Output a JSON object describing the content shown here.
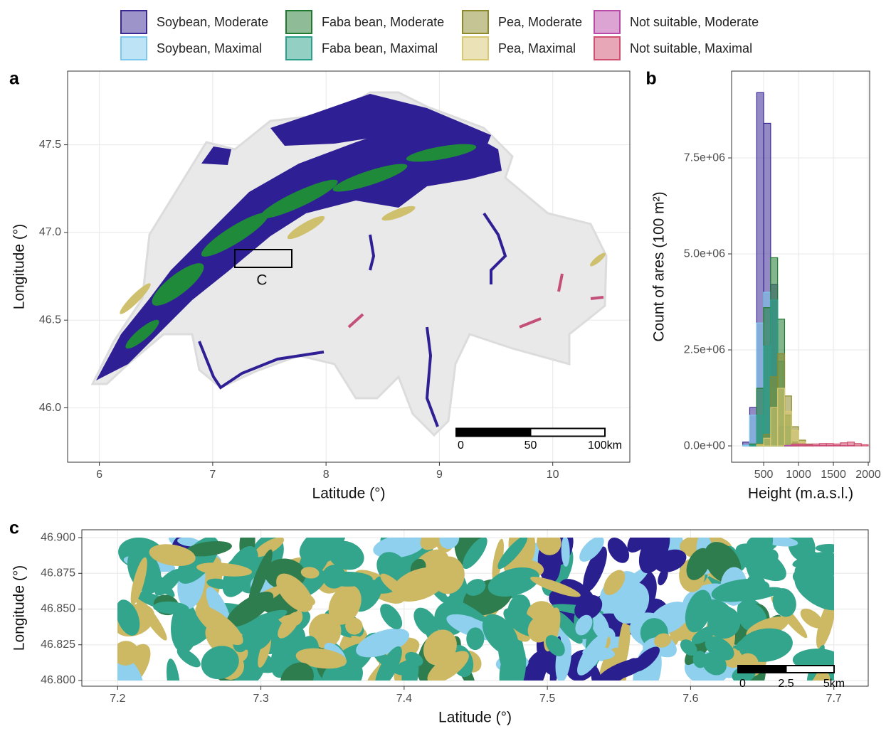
{
  "chart_data": [
    {
      "type": "map",
      "panel_label": "a",
      "xlabel": "Latitude (°)",
      "ylabel": "Longitude (°)",
      "xlim": [
        5.72,
        10.68
      ],
      "ylim": [
        45.69,
        47.92
      ],
      "xticks": [
        6,
        7,
        8,
        9,
        10
      ],
      "yticks": [
        {
          "value": 46,
          "label": "46.0"
        },
        46.5,
        {
          "value": 47,
          "label": "47.0"
        },
        47.5
      ],
      "grid": true,
      "scale_bar": [
        "0",
        "50",
        "100km"
      ],
      "inset_label": "C"
    },
    {
      "type": "histogram",
      "panel_label": "b",
      "xlabel": "Height (m.a.s.l.)",
      "ylabel": "Count of ares (100 m²)",
      "xlim": [
        40,
        2020
      ],
      "ylim": [
        -425000,
        9760000
      ],
      "xticks": [
        500,
        1000,
        1500,
        2000
      ],
      "yticks": [
        {
          "value": 0,
          "label": "0.0e+00"
        },
        {
          "value": 2500000,
          "label": "2.5e+06"
        },
        {
          "value": 5000000,
          "label": "5.0e+06"
        },
        {
          "value": 7500000,
          "label": "7.5e+06"
        }
      ],
      "grid": true,
      "bins": [
        200,
        300,
        400,
        500,
        600,
        700,
        800,
        900,
        1000,
        1100,
        1200,
        1300,
        1400,
        1500,
        1600,
        1700,
        1800,
        1900,
        2000
      ],
      "series": [
        {
          "name": "Soybean, Moderate",
          "color": "#3b2a96",
          "values": [
            100000,
            1000000,
            9200000,
            8400000,
            4200000,
            500000,
            50000,
            0,
            0,
            0,
            0,
            0,
            0,
            0,
            0,
            0,
            0,
            0
          ]
        },
        {
          "name": "Soybean, Maximal",
          "color": "#7cc8ee",
          "values": [
            20000,
            800000,
            3200000,
            4000000,
            1500000,
            200000,
            0,
            0,
            0,
            0,
            0,
            0,
            0,
            0,
            0,
            0,
            0,
            0
          ]
        },
        {
          "name": "Faba bean, Moderate",
          "color": "#1f7a30",
          "values": [
            0,
            50000,
            1500000,
            3600000,
            4900000,
            3300000,
            800000,
            100000,
            0,
            0,
            0,
            0,
            0,
            0,
            0,
            0,
            0,
            0
          ]
        },
        {
          "name": "Faba bean, Maximal",
          "color": "#2aa08a",
          "values": [
            0,
            20000,
            800000,
            2600000,
            3800000,
            2200000,
            500000,
            50000,
            0,
            0,
            0,
            0,
            0,
            0,
            0,
            0,
            0,
            0
          ]
        },
        {
          "name": "Pea, Moderate",
          "color": "#8c8a2a",
          "values": [
            0,
            0,
            50000,
            300000,
            1800000,
            2400000,
            1300000,
            500000,
            150000,
            50000,
            0,
            0,
            0,
            0,
            0,
            0,
            0,
            0
          ]
        },
        {
          "name": "Pea, Maximal",
          "color": "#d8c870",
          "values": [
            0,
            0,
            30000,
            200000,
            1000000,
            1500000,
            900000,
            400000,
            100000,
            30000,
            0,
            0,
            0,
            0,
            0,
            0,
            0,
            0
          ]
        },
        {
          "name": "Not suitable, Moderate",
          "color": "#b84aa8",
          "values": [
            0,
            0,
            0,
            0,
            0,
            0,
            10000,
            20000,
            20000,
            20000,
            10000,
            10000,
            10000,
            10000,
            10000,
            10000,
            0,
            0
          ]
        },
        {
          "name": "Not suitable, Maximal",
          "color": "#d05070",
          "values": [
            0,
            0,
            0,
            0,
            0,
            0,
            0,
            50000,
            50000,
            40000,
            50000,
            60000,
            60000,
            50000,
            80000,
            100000,
            60000,
            30000
          ]
        }
      ]
    },
    {
      "type": "map",
      "panel_label": "c",
      "xlabel": "Latitude (°)",
      "ylabel": "Longitude (°)",
      "xlim": [
        7.175,
        7.724
      ],
      "ylim": [
        46.796,
        46.9055
      ],
      "xticks": [
        7.2,
        7.3,
        7.4,
        7.5,
        7.6,
        7.7
      ],
      "yticks": [
        {
          "value": 46.8,
          "label": "46.800"
        },
        {
          "value": 46.825,
          "label": "46.825"
        },
        {
          "value": 46.85,
          "label": "46.850"
        },
        {
          "value": 46.875,
          "label": "46.875"
        },
        {
          "value": 46.9,
          "label": "46.900"
        }
      ],
      "grid": true,
      "scale_bar": [
        "0",
        "2.5",
        "5km"
      ]
    }
  ]
}
